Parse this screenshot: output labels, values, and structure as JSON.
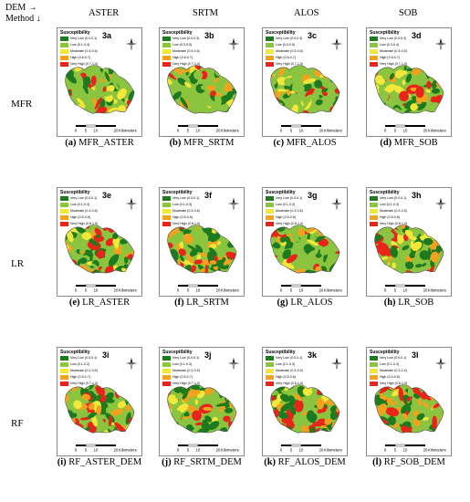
{
  "header": {
    "axis_dem": "DEM →",
    "axis_method": "Method ↓",
    "columns": [
      "ASTER",
      "SRTM",
      "ALOS",
      "SOB"
    ]
  },
  "rows": [
    {
      "label": "MFR",
      "panels": [
        {
          "code": "3a",
          "cap_letter": "(a)",
          "cap_text": "MFR_ASTER",
          "legend": [
            "Very Low (0.0-0.1)",
            "Low (0.1-0.4)",
            "Moderate (0.4-0.6)",
            "High (0.6-0.7)",
            "Very High (0.7-1.0)"
          ]
        },
        {
          "code": "3b",
          "cap_letter": "(b)",
          "cap_text": "MFR_SRTM",
          "legend": [
            "Very Low (0.0-0.3)",
            "Low (0.3-0.5)",
            "Moderate (0.5-0.6)",
            "High (0.6-0.7)",
            "Very High (0.7-1.0)"
          ]
        },
        {
          "code": "3c",
          "cap_letter": "(c)",
          "cap_text": "MFR_ALOS",
          "legend": [
            "Very Low (0.0-0.3)",
            "Low (0.3-0.5)",
            "Moderate (0.5-0.6)",
            "High (0.6-0.7)",
            "Very High (0.7-1.0)"
          ]
        },
        {
          "code": "3d",
          "cap_letter": "(d)",
          "cap_text": "MFR_SOB",
          "legend": [
            "Very Low (0.0-0.3)",
            "Low (0.3-0.4)",
            "Moderate (0.4-0.5)",
            "High (0.5-0.7)",
            "Very High (0.7-1.0)"
          ]
        }
      ]
    },
    {
      "label": "LR",
      "panels": [
        {
          "code": "3e",
          "cap_letter": "(e)",
          "cap_text": "LR_ASTER",
          "legend": [
            "Very Low (0.0-0.1)",
            "Low (0.1-0.4)",
            "Moderate (0.4-0.6)",
            "High (0.6-0.8)",
            "Very High (0.8-1.0)"
          ]
        },
        {
          "code": "3f",
          "cap_letter": "(f)",
          "cap_text": "LR_SRTM",
          "legend": [
            "Very Low (0.0-0.1)",
            "Low (0.1-0.3)",
            "Moderate (0.3-0.6)",
            "High (0.6-0.8)",
            "Very High (0.8-1.0)"
          ]
        },
        {
          "code": "3g",
          "cap_letter": "(g)",
          "cap_text": "LR_ALOS",
          "legend": [
            "Very Low (0.0-0.1)",
            "Low (0.1-0.3)",
            "Moderate (0.3-0.6)",
            "High (0.6-0.8)",
            "Very High (0.8-1.0)"
          ]
        },
        {
          "code": "3h",
          "cap_letter": "(h)",
          "cap_text": "LR_SOB",
          "legend": [
            "Very Low (0.0-0.1)",
            "Low (0.1-0.3)",
            "Moderate (0.3-0.5)",
            "High (0.5-0.8)",
            "Very High (0.8-1.0)"
          ]
        }
      ]
    },
    {
      "label": "RF",
      "panels": [
        {
          "code": "3i",
          "cap_letter": "(i)",
          "cap_text": "RF_ASTER_DEM",
          "legend": [
            "Very Low (0.0-0.1)",
            "Low (0.1-0.2)",
            "Moderate (0.2-0.5)",
            "High (0.5-0.7)",
            "Very High (0.7-1.0)"
          ]
        },
        {
          "code": "3j",
          "cap_letter": "(j)",
          "cap_text": "RF_SRTM_DEM",
          "legend": [
            "Very Low (0.0-0.1)",
            "Low (0.1-0.3)",
            "Moderate (0.3-0.5)",
            "High (0.5-0.7)",
            "Very High (0.7-1.0)"
          ]
        },
        {
          "code": "3k",
          "cap_letter": "(k)",
          "cap_text": "RF_ALOS_DEM",
          "legend": [
            "Very Low (0.0-0.1)",
            "Low (0.1-0.3)",
            "Moderate (0.3-0.5)",
            "High (0.5-0.6)",
            "Very High (0.6-1.0)"
          ]
        },
        {
          "code": "3l",
          "cap_letter": "(l)",
          "cap_text": "RF_SOB_DEM",
          "legend": [
            "Very Low (0.0-0.1)",
            "Low (0.1-0.3)",
            "Moderate (0.3-0.4)",
            "High (0.4-0.6)",
            "Very High (0.6-1.0)"
          ]
        }
      ]
    }
  ],
  "map_common": {
    "legend_title": "Susceptibility",
    "scale_ticks": [
      "0",
      "5",
      "10",
      "20"
    ],
    "scale_unit": "Kilometers",
    "north_label": "N",
    "class_colors": [
      "#1e7a1e",
      "#8bc53f",
      "#f1e839",
      "#f3a21d",
      "#e8241b"
    ]
  }
}
